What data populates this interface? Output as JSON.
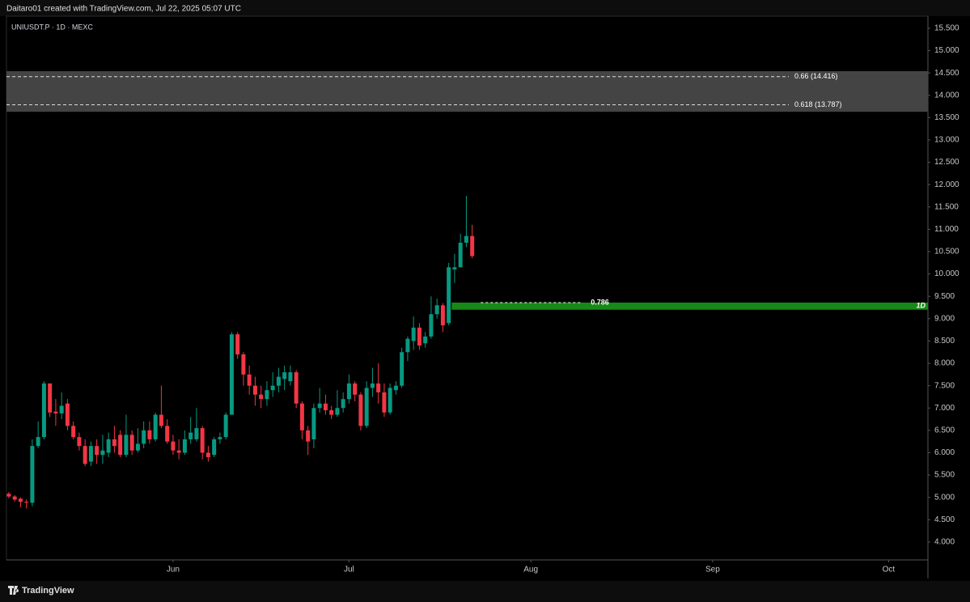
{
  "header": "Daitaro01 created with TradingView.com, Jul 22, 2025 05:07 UTC",
  "footer": "TradingView",
  "chart_data": {
    "type": "candlestick",
    "symbol": "UNIUSDT.P · 1D · MEXC",
    "up_color": "#089981",
    "down_color": "#f23645",
    "x": [
      -28,
      -27,
      -26,
      -25,
      -24,
      -23,
      -22,
      -21,
      -20,
      -19,
      -18,
      -17,
      -16,
      -15,
      -14,
      -13,
      -12,
      -11,
      -10,
      -9,
      -8,
      -7,
      -6,
      -5,
      -4,
      -3,
      -2,
      -1,
      0,
      1,
      2,
      3,
      4,
      5,
      6,
      7,
      8,
      9,
      10,
      11,
      12,
      13,
      14,
      15,
      16,
      17,
      18,
      19,
      20,
      21,
      22,
      23,
      24,
      25,
      26,
      27,
      28,
      29,
      30,
      31,
      32,
      33,
      34,
      35,
      36,
      37,
      38,
      39,
      40,
      41,
      42,
      43,
      44,
      45,
      46,
      47,
      48,
      49,
      50,
      51
    ],
    "open": [
      5.08,
      5.02,
      4.97,
      4.9,
      4.88,
      6.15,
      6.35,
      7.55,
      6.92,
      6.88,
      7.1,
      6.6,
      6.35,
      6.15,
      5.8,
      6.15,
      5.95,
      6.0,
      6.3,
      6.4,
      5.95,
      6.4,
      6.05,
      6.2,
      6.5,
      6.3,
      6.85,
      6.6,
      6.25,
      6.05,
      6.0,
      6.3,
      6.3,
      6.55,
      6.0,
      5.95,
      6.3,
      6.35,
      6.85,
      8.65,
      8.2,
      7.75,
      7.5,
      7.3,
      7.2,
      7.4,
      7.5,
      7.65,
      7.6,
      7.8,
      7.1,
      6.5,
      6.3,
      7.0,
      7.1,
      6.95,
      6.85,
      7.0,
      7.2,
      7.55,
      7.3,
      6.6,
      7.45,
      7.55,
      7.35,
      6.9,
      7.4,
      7.5,
      8.25,
      8.5,
      8.8,
      8.45,
      8.6,
      9.1,
      9.3,
      8.9,
      10.1,
      10.15,
      10.7,
      10.85
    ],
    "high": [
      5.12,
      5.05,
      5.0,
      4.95,
      6.3,
      6.7,
      7.6,
      7.55,
      7.2,
      7.35,
      7.2,
      6.7,
      6.45,
      6.3,
      6.25,
      6.3,
      6.4,
      6.45,
      6.6,
      6.5,
      6.85,
      6.5,
      6.55,
      6.7,
      6.7,
      6.9,
      7.5,
      6.75,
      6.4,
      6.3,
      6.5,
      6.8,
      7.0,
      6.6,
      6.15,
      6.35,
      6.45,
      6.9,
      8.7,
      8.7,
      8.25,
      7.95,
      7.7,
      7.5,
      7.6,
      7.8,
      7.9,
      7.95,
      7.95,
      7.85,
      7.15,
      6.6,
      7.1,
      7.45,
      7.3,
      7.05,
      7.4,
      7.35,
      7.75,
      7.6,
      7.35,
      7.6,
      7.9,
      8.0,
      7.55,
      7.55,
      7.6,
      8.35,
      8.6,
      9.05,
      8.9,
      8.7,
      9.5,
      9.45,
      9.35,
      10.25,
      10.45,
      10.9,
      11.75,
      11.1
    ],
    "low": [
      4.98,
      4.9,
      4.78,
      4.75,
      4.8,
      6.1,
      6.3,
      6.8,
      6.6,
      6.75,
      6.5,
      6.3,
      6.05,
      5.7,
      5.7,
      5.75,
      5.75,
      5.9,
      6.0,
      5.9,
      5.9,
      5.95,
      6.0,
      6.1,
      6.2,
      6.25,
      6.55,
      6.2,
      5.95,
      5.85,
      5.95,
      6.2,
      6.25,
      5.85,
      5.8,
      5.9,
      6.2,
      6.3,
      6.85,
      8.1,
      7.5,
      7.3,
      7.05,
      7.0,
      7.05,
      7.25,
      7.35,
      7.4,
      7.5,
      7.0,
      6.3,
      5.95,
      6.1,
      6.9,
      6.85,
      6.75,
      6.8,
      6.9,
      7.1,
      7.15,
      6.5,
      6.55,
      7.25,
      7.1,
      6.8,
      6.85,
      7.3,
      7.45,
      8.05,
      8.3,
      8.3,
      8.35,
      8.55,
      9.0,
      8.7,
      8.85,
      9.8,
      10.15,
      10.6,
      10.35
    ],
    "close": [
      5.02,
      4.95,
      4.9,
      4.88,
      6.15,
      6.35,
      7.55,
      6.9,
      6.88,
      7.05,
      6.6,
      6.35,
      6.15,
      5.75,
      6.15,
      5.95,
      6.05,
      6.3,
      6.15,
      5.95,
      6.4,
      6.05,
      6.2,
      6.5,
      6.3,
      6.85,
      6.6,
      6.25,
      6.05,
      6.0,
      6.3,
      6.45,
      6.55,
      6.0,
      5.9,
      6.3,
      6.35,
      6.85,
      8.65,
      8.2,
      7.75,
      7.5,
      7.3,
      7.2,
      7.4,
      7.5,
      7.7,
      7.8,
      7.8,
      7.1,
      6.5,
      6.25,
      7.0,
      7.1,
      6.95,
      6.85,
      7.0,
      7.2,
      7.55,
      7.3,
      6.6,
      7.45,
      7.55,
      7.35,
      6.9,
      7.45,
      7.5,
      8.25,
      8.55,
      8.8,
      8.4,
      8.6,
      9.1,
      9.3,
      8.85,
      10.15,
      10.15,
      10.7,
      10.85,
      10.4
    ],
    "xlim": [
      -28.4,
      128.7
    ],
    "xticks": [
      {
        "value": 0,
        "label": "Jun"
      },
      {
        "value": 30,
        "label": "Jul"
      },
      {
        "value": 61,
        "label": "Aug"
      },
      {
        "value": 92,
        "label": "Sep"
      },
      {
        "value": 122,
        "label": "Oct"
      }
    ],
    "ylim": [
      3.6,
      15.77
    ],
    "yticks": [
      {
        "value": 4,
        "label": "4.000"
      },
      {
        "value": 4.5,
        "label": "4.500"
      },
      {
        "value": 5,
        "label": "5.000"
      },
      {
        "value": 5.5,
        "label": "5.500"
      },
      {
        "value": 6,
        "label": "6.000"
      },
      {
        "value": 6.5,
        "label": "6.500"
      },
      {
        "value": 7,
        "label": "7.000"
      },
      {
        "value": 7.5,
        "label": "7.500"
      },
      {
        "value": 8,
        "label": "8.000"
      },
      {
        "value": 8.5,
        "label": "8.500"
      },
      {
        "value": 9,
        "label": "9.000"
      },
      {
        "value": 9.5,
        "label": "9.500"
      },
      {
        "value": 10,
        "label": "10.000"
      },
      {
        "value": 10.5,
        "label": "10.500"
      },
      {
        "value": 11,
        "label": "11.000"
      },
      {
        "value": 11.5,
        "label": "11.500"
      },
      {
        "value": 12,
        "label": "12.000"
      },
      {
        "value": 12.5,
        "label": "12.500"
      },
      {
        "value": 13,
        "label": "13.000"
      },
      {
        "value": 13.5,
        "label": "13.500"
      },
      {
        "value": 14,
        "label": "14.000"
      },
      {
        "value": 14.5,
        "label": "14.500"
      },
      {
        "value": 15,
        "label": "15.000"
      },
      {
        "value": 15.5,
        "label": "15.500"
      }
    ],
    "zone": {
      "from": 13.63,
      "to": 14.54,
      "color": "#444444"
    },
    "levels": [
      {
        "label": "0.66 (14.416)",
        "value": 14.416
      },
      {
        "label": "0.618 (13.787)",
        "value": 13.787
      }
    ],
    "band": {
      "label": "0.786",
      "from": 9.2,
      "to": 9.36,
      "start": 47.5,
      "tag": "1D",
      "color": "#168a16"
    }
  }
}
